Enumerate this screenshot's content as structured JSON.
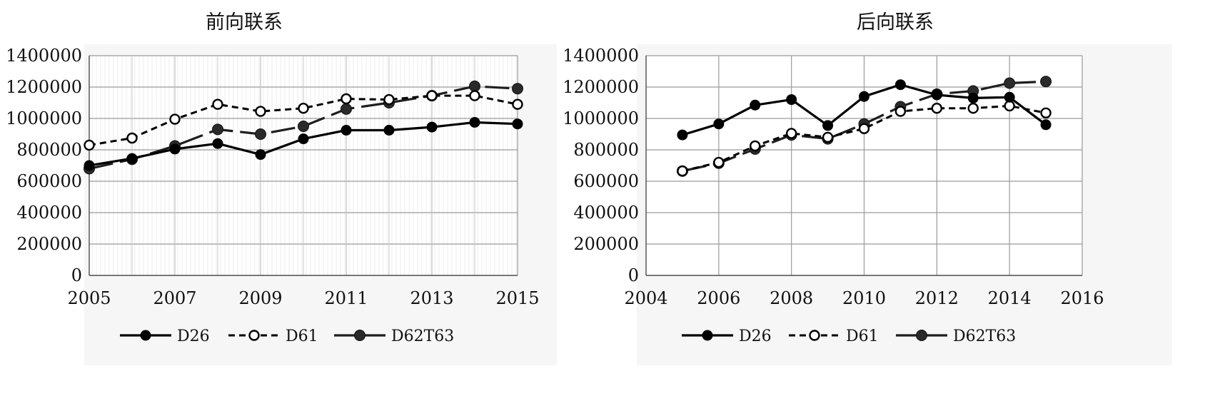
{
  "chart_data": [
    {
      "type": "line",
      "title": "前向联系",
      "xlabel": "",
      "ylabel": "",
      "x_ticks": [
        "2005",
        "2007",
        "2009",
        "2011",
        "2013",
        "2015"
      ],
      "xlim": [
        2005,
        2015
      ],
      "y_ticks": [
        "0",
        "200000",
        "400000",
        "600000",
        "800000",
        "1000000",
        "1200000",
        "1400000"
      ],
      "ylim": [
        0,
        1400000
      ],
      "grid": true,
      "legend_position": "bottom",
      "x": [
        2005,
        2006,
        2007,
        2008,
        2009,
        2010,
        2011,
        2012,
        2013,
        2014,
        2015
      ],
      "series": [
        {
          "name": "D26",
          "style": "solid",
          "marker": "filled",
          "values": [
            700000,
            745000,
            805000,
            840000,
            770000,
            870000,
            925000,
            925000,
            945000,
            975000,
            965000
          ]
        },
        {
          "name": "D61",
          "style": "dashed",
          "marker": "open",
          "values": [
            830000,
            875000,
            995000,
            1090000,
            1045000,
            1065000,
            1125000,
            1120000,
            1145000,
            1145000,
            1090000
          ]
        },
        {
          "name": "D62T63",
          "style": "longdash",
          "marker": "filled-dark",
          "values": [
            680000,
            740000,
            825000,
            930000,
            900000,
            950000,
            1060000,
            1100000,
            1145000,
            1205000,
            1190000
          ]
        }
      ]
    },
    {
      "type": "line",
      "title": "后向联系",
      "xlabel": "",
      "ylabel": "",
      "x_ticks": [
        "2004",
        "2006",
        "2008",
        "2010",
        "2012",
        "2014",
        "2016"
      ],
      "xlim": [
        2004,
        2016
      ],
      "y_ticks": [
        "0",
        "200000",
        "400000",
        "600000",
        "800000",
        "1000000",
        "1200000",
        "1400000"
      ],
      "ylim": [
        0,
        1400000
      ],
      "grid": true,
      "legend_position": "bottom",
      "x": [
        2005,
        2006,
        2007,
        2008,
        2009,
        2010,
        2011,
        2012,
        2013,
        2014,
        2015
      ],
      "series": [
        {
          "name": "D26",
          "style": "solid",
          "marker": "filled",
          "values": [
            895000,
            965000,
            1085000,
            1120000,
            955000,
            1140000,
            1215000,
            1150000,
            1130000,
            1135000,
            960000
          ]
        },
        {
          "name": "D61",
          "style": "dashed",
          "marker": "open",
          "values": [
            665000,
            720000,
            825000,
            905000,
            880000,
            935000,
            1045000,
            1065000,
            1065000,
            1080000,
            1035000
          ]
        },
        {
          "name": "D62T63",
          "style": "longdash",
          "marker": "filled-dark",
          "values": [
            665000,
            715000,
            805000,
            895000,
            870000,
            965000,
            1075000,
            1155000,
            1175000,
            1225000,
            1235000
          ]
        }
      ]
    }
  ]
}
